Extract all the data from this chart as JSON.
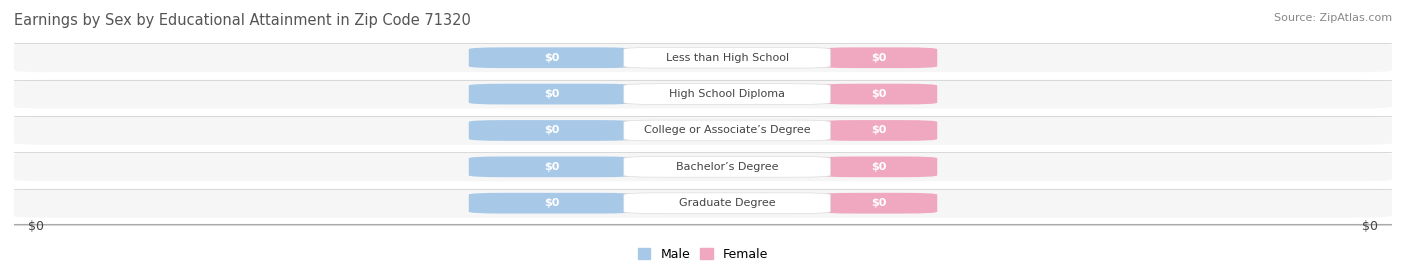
{
  "title": "Earnings by Sex by Educational Attainment in Zip Code 71320",
  "source": "Source: ZipAtlas.com",
  "categories": [
    "Less than High School",
    "High School Diploma",
    "College or Associate’s Degree",
    "Bachelor’s Degree",
    "Graduate Degree"
  ],
  "male_values": [
    0,
    0,
    0,
    0,
    0
  ],
  "female_values": [
    0,
    0,
    0,
    0,
    0
  ],
  "male_color": "#a8c8e8",
  "female_color": "#f0a8c0",
  "male_label": "Male",
  "female_label": "Female",
  "row_bg_light": "#f5f5f5",
  "row_bg_dark": "#ebebeb",
  "xlabel_left": "$0",
  "xlabel_right": "$0",
  "title_fontsize": 10.5,
  "source_fontsize": 8,
  "value_label": "$0",
  "background_color": "#ffffff",
  "title_color": "#555555",
  "text_color": "#444444",
  "label_box_color": "#ffffff",
  "stripe_color": "#d8d8d8"
}
